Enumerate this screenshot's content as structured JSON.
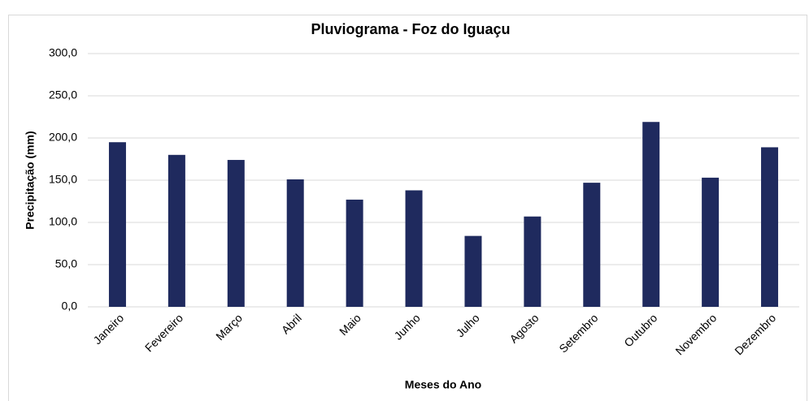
{
  "chart_data": {
    "type": "bar",
    "title": "Pluviograma - Foz do Iguaçu",
    "x_label": "Meses do Ano",
    "y_label": "Precipitação (mm)",
    "categories": [
      "Janeiro",
      "Fevereiro",
      "Março",
      "Abril",
      "Maio",
      "Junho",
      "Julho",
      "Agosto",
      "Setembro",
      "Outubro",
      "Novembro",
      "Dezembro"
    ],
    "values": [
      195,
      180,
      174,
      151,
      127,
      138,
      84,
      107,
      147,
      219,
      153,
      189
    ],
    "color": "#1f2a5e",
    "ylim": [
      0,
      300
    ],
    "yticks": [
      {
        "value": 0,
        "label": "0,0"
      },
      {
        "value": 50,
        "label": "50,0"
      },
      {
        "value": 100,
        "label": "100,0"
      },
      {
        "value": 150,
        "label": "150,0"
      },
      {
        "value": 200,
        "label": "200,0"
      },
      {
        "value": 250,
        "label": "250,0"
      },
      {
        "value": 300,
        "label": "300,0"
      }
    ],
    "grid": true
  }
}
